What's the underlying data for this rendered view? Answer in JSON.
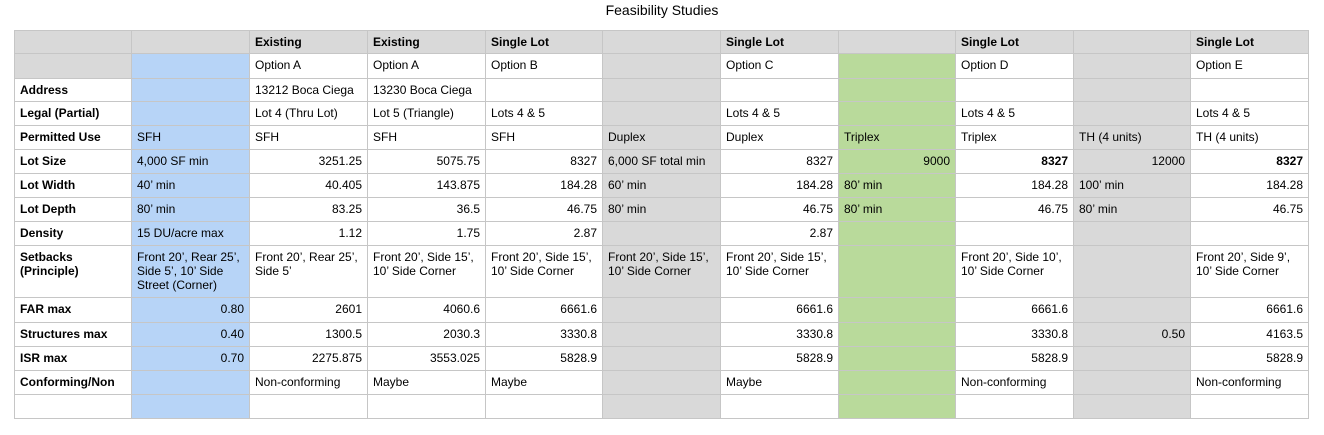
{
  "title": "Feasibility Studies",
  "table": {
    "rows": [
      [
        null,
        null,
        "Existing",
        "Existing",
        "Single Lot",
        null,
        "Single Lot",
        null,
        "Single Lot",
        null,
        "Single Lot"
      ],
      [
        null,
        null,
        "Option A",
        "Option A",
        "Option B",
        null,
        "Option C",
        null,
        "Option D",
        null,
        "Option E"
      ],
      [
        "Address",
        null,
        "13212 Boca Ciega",
        "13230 Boca Ciega",
        null,
        null,
        null,
        null,
        null,
        null,
        null
      ],
      [
        "Legal (Partial)",
        null,
        "Lot 4 (Thru Lot)",
        "Lot 5 (Triangle)",
        "Lots 4 & 5",
        null,
        "Lots 4 & 5",
        null,
        "Lots 4 & 5",
        null,
        "Lots 4 & 5"
      ],
      [
        "Permitted Use",
        "SFH",
        "SFH",
        "SFH",
        "SFH",
        "Duplex",
        "Duplex",
        "Triplex",
        "Triplex",
        "TH (4 units)",
        "TH (4 units)"
      ],
      [
        "Lot Size",
        "4,000 SF min",
        "3251.25",
        "5075.75",
        "8327",
        "6,000 SF total min",
        "8327",
        "9000",
        "8327",
        "12000",
        "8327"
      ],
      [
        "Lot Width",
        "40’ min",
        "40.405",
        "143.875",
        "184.28",
        "60’ min",
        "184.28",
        "80’ min",
        "184.28",
        "100’ min",
        "184.28"
      ],
      [
        "Lot Depth",
        "80’ min",
        "83.25",
        "36.5",
        "46.75",
        "80’ min",
        "46.75",
        "80’ min",
        "46.75",
        "80’ min",
        "46.75"
      ],
      [
        "Density",
        "15 DU/acre max",
        "1.12",
        "1.75",
        "2.87",
        null,
        "2.87",
        null,
        null,
        null,
        null
      ],
      [
        "Setbacks (Principle)",
        "Front 20’, Rear 25’, Side 5’, 10’ Side Street (Corner)",
        "Front 20’, Rear 25’, Side 5’",
        "Front 20’, Side 15’, 10’ Side Corner",
        "Front 20’, Side 15’, 10’ Side Corner",
        "Front 20’, Side 15’, 10’ Side Corner",
        "Front 20’, Side 15’, 10’ Side Corner",
        null,
        "Front 20’, Side 10’, 10’ Side Corner",
        null,
        "Front 20’, Side 9’, 10’ Side Corner"
      ],
      [
        "FAR max",
        "0.80",
        "2601",
        "4060.6",
        "6661.6",
        null,
        "6661.6",
        null,
        "6661.6",
        null,
        "6661.6"
      ],
      [
        "Structures max",
        "0.40",
        "1300.5",
        "2030.3",
        "3330.8",
        null,
        "3330.8",
        null,
        "3330.8",
        "0.50",
        "4163.5"
      ],
      [
        "ISR max",
        "0.70",
        "2275.875",
        "3553.025",
        "5828.9",
        null,
        "5828.9",
        null,
        "5828.9",
        null,
        "5828.9"
      ],
      [
        "Conforming/Non",
        null,
        "Non-conforming",
        "Maybe",
        "Maybe",
        null,
        "Maybe",
        null,
        "Non-conforming",
        null,
        "Non-conforming"
      ]
    ]
  }
}
